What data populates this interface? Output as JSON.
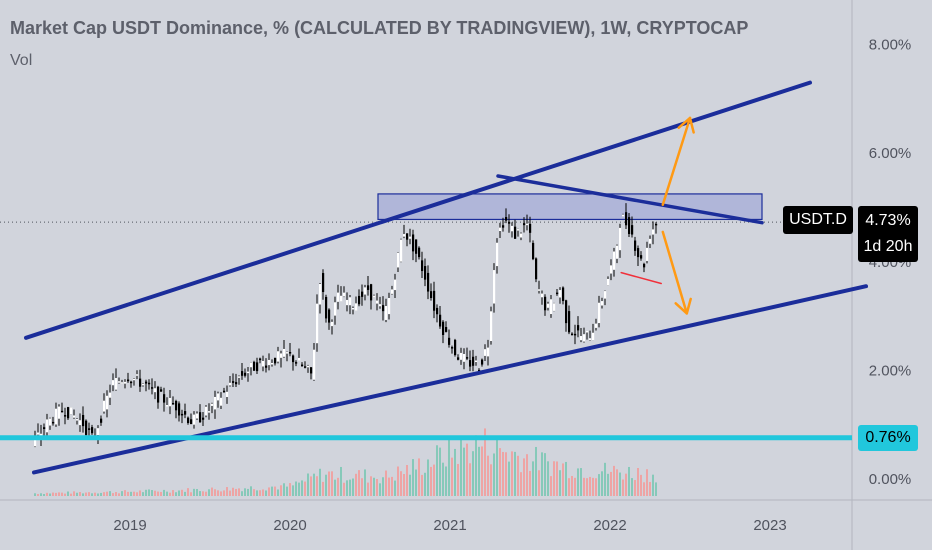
{
  "title": "Market Cap USDT Dominance, % (CALCULATED BY TRADINGVIEW), 1W, CRYPTOCAP",
  "indicator": "Vol",
  "symbol_badge": "USDT.D",
  "price_label": "4.73%",
  "countdown_label": "1d 20h",
  "level_label": "0.76%",
  "colors": {
    "background": "#d1d4dc",
    "trendline": "#1b2d9a",
    "zone_fill": "#a4acd8",
    "arrow": "#ff9a14",
    "level_line": "#21c7dc",
    "support_mark": "#f0303a",
    "vol_up": "#86c9b9",
    "vol_down": "#eea4a4"
  },
  "chart_data": {
    "type": "candlestick",
    "title": "Market Cap USDT Dominance, % (CALCULATED BY TRADINGVIEW), 1W, CRYPTOCAP",
    "y_axis": {
      "ticks": [
        "8.00%",
        "6.00%",
        "4.00%",
        "2.00%",
        "0.00%"
      ],
      "ylim": [
        -0.2,
        8.6
      ],
      "unit": "%"
    },
    "x_axis": {
      "ticks": [
        "2019",
        "2020",
        "2021",
        "2022",
        "2023"
      ],
      "xlim": [
        2018.35,
        2023.6
      ]
    },
    "last_price": 4.73,
    "horizontal_level": 0.76,
    "price_path": [
      [
        2018.4,
        0.62
      ],
      [
        2018.5,
        1.05
      ],
      [
        2018.6,
        1.3
      ],
      [
        2018.72,
        1.02
      ],
      [
        2018.78,
        0.72
      ],
      [
        2018.9,
        1.75
      ],
      [
        2019.0,
        1.9
      ],
      [
        2019.1,
        1.75
      ],
      [
        2019.2,
        1.5
      ],
      [
        2019.3,
        1.35
      ],
      [
        2019.4,
        1.05
      ],
      [
        2019.5,
        1.25
      ],
      [
        2019.6,
        1.6
      ],
      [
        2019.7,
        1.9
      ],
      [
        2019.8,
        2.1
      ],
      [
        2019.9,
        2.2
      ],
      [
        2020.0,
        2.3
      ],
      [
        2020.1,
        2.05
      ],
      [
        2020.15,
        1.9
      ],
      [
        2020.18,
        3.2
      ],
      [
        2020.2,
        3.7
      ],
      [
        2020.25,
        2.8
      ],
      [
        2020.32,
        3.4
      ],
      [
        2020.4,
        3.2
      ],
      [
        2020.5,
        3.5
      ],
      [
        2020.6,
        3.0
      ],
      [
        2020.65,
        3.5
      ],
      [
        2020.72,
        4.6
      ],
      [
        2020.78,
        4.3
      ],
      [
        2020.85,
        3.8
      ],
      [
        2020.92,
        3.1
      ],
      [
        2020.98,
        2.7
      ],
      [
        2021.05,
        2.3
      ],
      [
        2021.12,
        2.15
      ],
      [
        2021.2,
        2.1
      ],
      [
        2021.25,
        2.5
      ],
      [
        2021.3,
        4.4
      ],
      [
        2021.35,
        4.8
      ],
      [
        2021.42,
        4.5
      ],
      [
        2021.5,
        4.7
      ],
      [
        2021.55,
        3.6
      ],
      [
        2021.62,
        3.1
      ],
      [
        2021.7,
        3.5
      ],
      [
        2021.75,
        2.8
      ],
      [
        2021.85,
        2.6
      ],
      [
        2021.9,
        2.7
      ],
      [
        2021.98,
        3.5
      ],
      [
        2022.05,
        4.2
      ],
      [
        2022.08,
        4.85
      ],
      [
        2022.14,
        4.6
      ],
      [
        2022.18,
        4.2
      ],
      [
        2022.22,
        3.9
      ],
      [
        2022.26,
        4.5
      ],
      [
        2022.3,
        4.73
      ]
    ],
    "volume_path": [
      [
        2018.4,
        0.05
      ],
      [
        2019.0,
        0.08
      ],
      [
        2019.5,
        0.12
      ],
      [
        2020.0,
        0.18
      ],
      [
        2020.2,
        0.4
      ],
      [
        2020.6,
        0.35
      ],
      [
        2020.8,
        0.55
      ],
      [
        2021.0,
        0.8
      ],
      [
        2021.2,
        0.95
      ],
      [
        2021.4,
        0.75
      ],
      [
        2021.6,
        0.6
      ],
      [
        2021.8,
        0.5
      ],
      [
        2022.0,
        0.45
      ],
      [
        2022.3,
        0.4
      ]
    ],
    "annotations": {
      "channel_upper": [
        [
          2018.35,
          2.6
        ],
        [
          2023.25,
          7.3
        ]
      ],
      "channel_lower": [
        [
          2018.4,
          0.12
        ],
        [
          2023.6,
          3.55
        ]
      ],
      "descending_line": [
        [
          2021.3,
          5.58
        ],
        [
          2022.95,
          4.72
        ]
      ],
      "resistance_zone": {
        "x": [
          2020.55,
          2022.95
        ],
        "y": [
          4.78,
          5.25
        ]
      },
      "dotted_level": 4.73,
      "support_segment": [
        [
          2022.07,
          3.8
        ],
        [
          2022.32,
          3.6
        ]
      ],
      "arrow_up": [
        [
          2022.33,
          5.05
        ],
        [
          2022.5,
          6.65
        ]
      ],
      "arrow_down": [
        [
          2022.33,
          4.55
        ],
        [
          2022.48,
          3.05
        ]
      ]
    }
  }
}
